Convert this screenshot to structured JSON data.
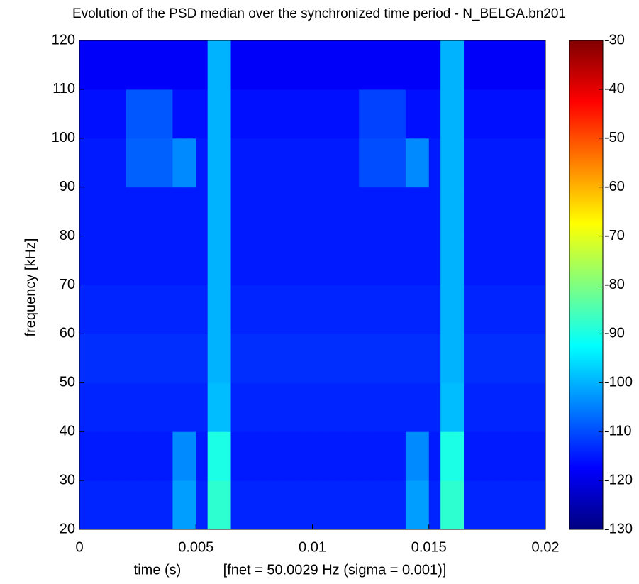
{
  "chart_data": {
    "type": "heatmap",
    "title": "Evolution of the PSD median over the synchronized time period - N_BELGA.bn201",
    "xlabel": "time (s)",
    "note": "[fnet = 50.0029 Hz (sigma = 0.001)]",
    "ylabel": "frequency [kHz]",
    "colormap": "jet",
    "x_edges": [
      0,
      0.0005,
      0.001,
      0.0015,
      0.002,
      0.0025,
      0.003,
      0.0035,
      0.004,
      0.0045,
      0.005,
      0.0055,
      0.006,
      0.0065,
      0.007,
      0.0075,
      0.008,
      0.0085,
      0.009,
      0.0095,
      0.01,
      0.0105,
      0.011,
      0.0115,
      0.012,
      0.0125,
      0.013,
      0.0135,
      0.014,
      0.0145,
      0.015,
      0.0155,
      0.016,
      0.0165,
      0.017,
      0.0175,
      0.018,
      0.0185,
      0.019,
      0.0195,
      0.02
    ],
    "y_edges": [
      20,
      30,
      40,
      50,
      60,
      70,
      80,
      90,
      100,
      110,
      120
    ],
    "z": [
      [
        -114,
        -114,
        -114,
        -114,
        -114,
        -114,
        -114,
        -114,
        -102,
        -102,
        -114,
        -88,
        -88,
        -114,
        -114,
        -114,
        -114,
        -114,
        -114,
        -114,
        -114,
        -114,
        -114,
        -114,
        -114,
        -114,
        -114,
        -114,
        -102,
        -102,
        -114,
        -88,
        -88,
        -114,
        -114,
        -114,
        -114,
        -114,
        -114,
        -114
      ],
      [
        -115,
        -115,
        -115,
        -115,
        -115,
        -115,
        -115,
        -115,
        -104,
        -104,
        -115,
        -90,
        -90,
        -115,
        -115,
        -115,
        -115,
        -115,
        -115,
        -115,
        -115,
        -115,
        -115,
        -115,
        -115,
        -115,
        -115,
        -115,
        -104,
        -104,
        -115,
        -90,
        -90,
        -115,
        -115,
        -115,
        -115,
        -115,
        -115,
        -115
      ],
      [
        -114,
        -114,
        -114,
        -114,
        -114,
        -114,
        -114,
        -114,
        -114,
        -114,
        -114,
        -99,
        -99,
        -114,
        -114,
        -114,
        -114,
        -114,
        -114,
        -114,
        -114,
        -114,
        -114,
        -114,
        -114,
        -114,
        -114,
        -114,
        -114,
        -114,
        -114,
        -99,
        -99,
        -114,
        -114,
        -114,
        -114,
        -114,
        -114,
        -114
      ],
      [
        -113,
        -113,
        -113,
        -113,
        -113,
        -113,
        -113,
        -113,
        -113,
        -113,
        -113,
        -100,
        -100,
        -113,
        -113,
        -113,
        -113,
        -113,
        -113,
        -113,
        -113,
        -113,
        -113,
        -113,
        -113,
        -113,
        -113,
        -113,
        -113,
        -113,
        -113,
        -100,
        -100,
        -113,
        -113,
        -113,
        -113,
        -113,
        -113,
        -113
      ],
      [
        -114,
        -114,
        -114,
        -114,
        -114,
        -114,
        -114,
        -114,
        -114,
        -114,
        -114,
        -100,
        -100,
        -114,
        -114,
        -114,
        -114,
        -114,
        -114,
        -114,
        -114,
        -114,
        -114,
        -114,
        -114,
        -114,
        -114,
        -114,
        -114,
        -114,
        -114,
        -100,
        -100,
        -114,
        -114,
        -114,
        -114,
        -114,
        -114,
        -114
      ],
      [
        -115,
        -115,
        -115,
        -115,
        -115,
        -115,
        -115,
        -115,
        -115,
        -115,
        -115,
        -100,
        -100,
        -115,
        -115,
        -115,
        -115,
        -115,
        -115,
        -115,
        -115,
        -115,
        -115,
        -115,
        -115,
        -115,
        -115,
        -115,
        -115,
        -115,
        -115,
        -100,
        -100,
        -115,
        -115,
        -115,
        -115,
        -115,
        -115,
        -115
      ],
      [
        -115,
        -115,
        -115,
        -115,
        -115,
        -115,
        -115,
        -115,
        -115,
        -115,
        -115,
        -100,
        -100,
        -115,
        -115,
        -115,
        -115,
        -115,
        -115,
        -115,
        -115,
        -115,
        -115,
        -115,
        -115,
        -115,
        -115,
        -115,
        -115,
        -115,
        -115,
        -100,
        -100,
        -115,
        -115,
        -115,
        -115,
        -115,
        -115,
        -115
      ],
      [
        -115,
        -115,
        -115,
        -115,
        -108,
        -108,
        -108,
        -108,
        -104,
        -104,
        -115,
        -100,
        -100,
        -115,
        -115,
        -115,
        -115,
        -115,
        -115,
        -115,
        -115,
        -115,
        -115,
        -115,
        -110,
        -110,
        -110,
        -110,
        -104,
        -104,
        -115,
        -100,
        -100,
        -115,
        -115,
        -115,
        -115,
        -115,
        -115,
        -115
      ],
      [
        -116,
        -116,
        -116,
        -116,
        -109,
        -109,
        -109,
        -109,
        -116,
        -116,
        -116,
        -100,
        -100,
        -116,
        -116,
        -116,
        -116,
        -116,
        -116,
        -116,
        -116,
        -116,
        -116,
        -116,
        -111,
        -111,
        -111,
        -111,
        -116,
        -116,
        -116,
        -100,
        -100,
        -116,
        -116,
        -116,
        -116,
        -116,
        -116,
        -116
      ],
      [
        -118,
        -118,
        -118,
        -118,
        -118,
        -118,
        -118,
        -118,
        -118,
        -118,
        -118,
        -100,
        -100,
        -118,
        -118,
        -118,
        -118,
        -118,
        -118,
        -118,
        -118,
        -118,
        -118,
        -118,
        -118,
        -118,
        -118,
        -118,
        -118,
        -118,
        -118,
        -100,
        -100,
        -118,
        -118,
        -118,
        -118,
        -118,
        -118,
        -118
      ]
    ],
    "xlim": [
      0,
      0.02
    ],
    "xticks": [
      0,
      0.005,
      0.01,
      0.015,
      0.02
    ],
    "ylim": [
      20,
      120
    ],
    "yticks": [
      20,
      30,
      40,
      50,
      60,
      70,
      80,
      90,
      100,
      110,
      120
    ],
    "zlim": [
      -130,
      -30
    ],
    "zticks": [
      -130,
      -120,
      -110,
      -100,
      -90,
      -80,
      -70,
      -60,
      -50,
      -40,
      -30
    ]
  }
}
